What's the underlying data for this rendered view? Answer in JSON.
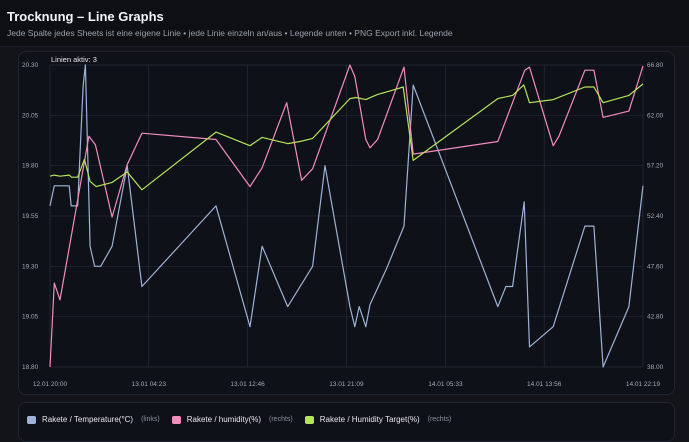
{
  "header": {
    "title": "Trocknung – Line Graphs",
    "subtitle": "Jede Spalte jedes Sheets ist eine eigene Linie • jede Linie einzeln an/aus • Legende unten • PNG Export inkl. Legende"
  },
  "chart_data": {
    "type": "line",
    "active_label": "Linien aktiv: 3",
    "grid": true,
    "legend_placement": "bottom",
    "x_ticks": [
      "12.01 20:00",
      "13.01 04:23",
      "13.01 12:46",
      "13.01 21:09",
      "14.01 05:33",
      "14.01 13:56",
      "14.01 22:19"
    ],
    "xlim": [
      "12.01 20:00",
      "14.01 22:19"
    ],
    "y_left": {
      "ylim": [
        18.8,
        20.3
      ],
      "ticks": [
        "18.80",
        "19.05",
        "19.30",
        "19.55",
        "19.80",
        "20.05",
        "20.30"
      ]
    },
    "y_right": {
      "ylim": [
        38.0,
        66.8
      ],
      "ticks": [
        "38.00",
        "42.80",
        "47.60",
        "52.40",
        "57.20",
        "62.00",
        "66.80"
      ]
    },
    "series": [
      {
        "name": "Rakete / Temperature(°C)",
        "axis": "left",
        "axis_label": "(links)",
        "color": "#9fb2d8",
        "points": [
          [
            "12.01 20:00",
            19.6
          ],
          [
            "12.01 20:22",
            19.7
          ],
          [
            "12.01 21:38",
            19.7
          ],
          [
            "12.01 21:48",
            19.6
          ],
          [
            "12.01 22:21",
            19.6
          ],
          [
            "12.01 22:33",
            19.87
          ],
          [
            "12.01 22:49",
            20.2
          ],
          [
            "12.01 23:00",
            20.3
          ],
          [
            "12.01 23:24",
            19.4
          ],
          [
            "12.01 23:47",
            19.3
          ],
          [
            "13.01 00:18",
            19.3
          ],
          [
            "13.01 01:16",
            19.4
          ],
          [
            "13.01 02:33",
            19.8
          ],
          [
            "13.01 03:48",
            19.2
          ],
          [
            "13.01 10:05",
            19.6
          ],
          [
            "13.01 12:58",
            19.0
          ],
          [
            "13.01 14:00",
            19.4
          ],
          [
            "13.01 16:10",
            19.1
          ],
          [
            "13.01 18:17",
            19.3
          ],
          [
            "13.01 19:20",
            19.8
          ],
          [
            "13.01 21:27",
            19.1
          ],
          [
            "13.01 21:52",
            19.0
          ],
          [
            "13.01 22:14",
            19.1
          ],
          [
            "13.01 22:48",
            19.0
          ],
          [
            "13.01 23:09",
            19.11
          ],
          [
            "14.01 00:34",
            19.29
          ],
          [
            "14.01 02:02",
            19.5
          ],
          [
            "14.01 02:49",
            20.2
          ],
          [
            "14.01 10:00",
            19.1
          ],
          [
            "14.01 10:41",
            19.2
          ],
          [
            "14.01 11:15",
            19.2
          ],
          [
            "14.01 12:14",
            19.62
          ],
          [
            "14.01 12:41",
            18.9
          ],
          [
            "14.01 14:42",
            19.0
          ],
          [
            "14.01 17:23",
            19.5
          ],
          [
            "14.01 18:09",
            19.5
          ],
          [
            "14.01 18:56",
            18.8
          ],
          [
            "14.01 21:07",
            19.1
          ],
          [
            "14.01 22:19",
            19.7
          ]
        ]
      },
      {
        "name": "Rakete / humidity(%)",
        "axis": "right",
        "axis_label": "(rechts)",
        "color": "#f28dbf",
        "points": [
          [
            "12.01 20:00",
            38.0
          ],
          [
            "12.01 20:22",
            46.0
          ],
          [
            "12.01 20:51",
            44.4
          ],
          [
            "12.01 23:18",
            60.0
          ],
          [
            "12.01 23:51",
            59.2
          ],
          [
            "13.01 01:16",
            52.3
          ],
          [
            "13.01 02:33",
            57.3
          ],
          [
            "13.01 03:48",
            60.3
          ],
          [
            "13.01 10:05",
            59.7
          ],
          [
            "13.01 12:58",
            55.2
          ],
          [
            "13.01 14:00",
            57.0
          ],
          [
            "13.01 16:05",
            63.2
          ],
          [
            "13.01 17:21",
            55.8
          ],
          [
            "13.01 18:17",
            56.9
          ],
          [
            "13.01 21:27",
            66.8
          ],
          [
            "13.01 21:52",
            65.7
          ],
          [
            "13.01 22:48",
            59.7
          ],
          [
            "13.01 23:09",
            58.9
          ],
          [
            "13.01 23:48",
            59.7
          ],
          [
            "14.01 02:02",
            66.6
          ],
          [
            "14.01 02:49",
            58.3
          ],
          [
            "14.01 10:00",
            59.5
          ],
          [
            "14.01 12:17",
            66.3
          ],
          [
            "14.01 12:41",
            66.6
          ],
          [
            "14.01 14:42",
            59.1
          ],
          [
            "14.01 15:11",
            60.0
          ],
          [
            "14.01 17:23",
            66.3
          ],
          [
            "14.01 18:09",
            66.3
          ],
          [
            "14.01 18:56",
            61.8
          ],
          [
            "14.01 21:07",
            62.4
          ],
          [
            "14.01 22:19",
            66.7
          ]
        ]
      },
      {
        "name": "Rakete / Humidity Target(%)",
        "axis": "right",
        "axis_label": "(rechts)",
        "color": "#b6e35c",
        "points": [
          [
            "12.01 20:00",
            56.2
          ],
          [
            "12.01 20:22",
            56.3
          ],
          [
            "12.01 20:51",
            56.2
          ],
          [
            "12.01 21:38",
            56.3
          ],
          [
            "12.01 21:50",
            56.1
          ],
          [
            "12.01 22:21",
            56.1
          ],
          [
            "12.01 22:55",
            57.8
          ],
          [
            "12.01 23:24",
            55.7
          ],
          [
            "12.01 23:55",
            55.2
          ],
          [
            "13.01 01:16",
            55.6
          ],
          [
            "13.01 02:33",
            56.6
          ],
          [
            "13.01 03:48",
            54.9
          ],
          [
            "13.01 10:05",
            60.4
          ],
          [
            "13.01 12:58",
            59.1
          ],
          [
            "13.01 14:00",
            59.9
          ],
          [
            "13.01 16:10",
            59.3
          ],
          [
            "13.01 17:13",
            59.5
          ],
          [
            "13.01 18:17",
            59.8
          ],
          [
            "13.01 21:27",
            63.6
          ],
          [
            "13.01 21:58",
            63.7
          ],
          [
            "13.01 22:48",
            63.5
          ],
          [
            "13.01 23:48",
            64.0
          ],
          [
            "14.01 00:47",
            64.3
          ],
          [
            "14.01 01:58",
            64.7
          ],
          [
            "14.01 02:49",
            57.7
          ],
          [
            "14.01 10:00",
            63.6
          ],
          [
            "14.01 11:15",
            63.9
          ],
          [
            "14.01 12:12",
            64.9
          ],
          [
            "14.01 12:41",
            63.2
          ],
          [
            "14.01 14:42",
            63.5
          ],
          [
            "14.01 17:23",
            64.7
          ],
          [
            "14.01 18:09",
            64.7
          ],
          [
            "14.01 18:56",
            63.2
          ],
          [
            "14.01 21:07",
            63.9
          ],
          [
            "14.01 22:19",
            65.0
          ]
        ]
      }
    ]
  }
}
